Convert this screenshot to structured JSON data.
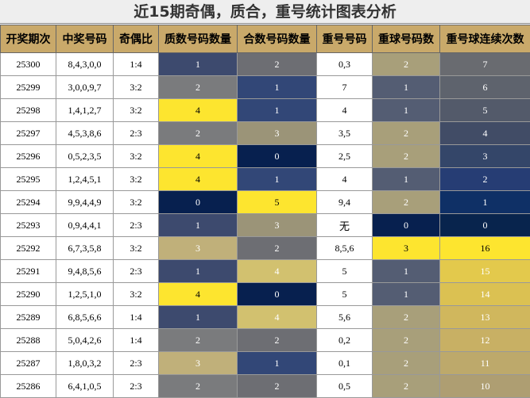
{
  "title": "近15期奇偶，质合，重号统计图表分析",
  "columns": [
    "开奖期次",
    "中奖号码",
    "奇偶比",
    "质数号码数量",
    "合数号码数量",
    "重号号码",
    "重球号码数",
    "重号球连续次数"
  ],
  "chart_data": {
    "type": "table",
    "title": "近15期奇偶，质合，重号统计图表分析",
    "columns": [
      "开奖期次",
      "中奖号码",
      "奇偶比",
      "质数号码数量",
      "合数号码数量",
      "重号号码",
      "重球号码数",
      "重号球连续次数"
    ],
    "rows": [
      {
        "period": "25300",
        "numbers": "8,4,3,0,0",
        "odd_even": "1:4",
        "prime": 1,
        "composite": 2,
        "repeat_nums": "0,3",
        "repeat_count": 2,
        "streak": 7
      },
      {
        "period": "25299",
        "numbers": "3,0,0,9,7",
        "odd_even": "3:2",
        "prime": 2,
        "composite": 1,
        "repeat_nums": "7",
        "repeat_count": 1,
        "streak": 6
      },
      {
        "period": "25298",
        "numbers": "1,4,1,2,7",
        "odd_even": "3:2",
        "prime": 4,
        "composite": 1,
        "repeat_nums": "4",
        "repeat_count": 1,
        "streak": 5
      },
      {
        "period": "25297",
        "numbers": "4,5,3,8,6",
        "odd_even": "2:3",
        "prime": 2,
        "composite": 3,
        "repeat_nums": "3,5",
        "repeat_count": 2,
        "streak": 4
      },
      {
        "period": "25296",
        "numbers": "0,5,2,3,5",
        "odd_even": "3:2",
        "prime": 4,
        "composite": 0,
        "repeat_nums": "2,5",
        "repeat_count": 2,
        "streak": 3
      },
      {
        "period": "25295",
        "numbers": "1,2,4,5,1",
        "odd_even": "3:2",
        "prime": 4,
        "composite": 1,
        "repeat_nums": "4",
        "repeat_count": 1,
        "streak": 2
      },
      {
        "period": "25294",
        "numbers": "9,9,4,4,9",
        "odd_even": "3:2",
        "prime": 0,
        "composite": 5,
        "repeat_nums": "9,4",
        "repeat_count": 2,
        "streak": 1
      },
      {
        "period": "25293",
        "numbers": "0,9,4,4,1",
        "odd_even": "2:3",
        "prime": 1,
        "composite": 3,
        "repeat_nums": "无",
        "repeat_count": 0,
        "streak": 0
      },
      {
        "period": "25292",
        "numbers": "6,7,3,5,8",
        "odd_even": "3:2",
        "prime": 3,
        "composite": 2,
        "repeat_nums": "8,5,6",
        "repeat_count": 3,
        "streak": 16
      },
      {
        "period": "25291",
        "numbers": "9,4,8,5,6",
        "odd_even": "2:3",
        "prime": 1,
        "composite": 4,
        "repeat_nums": "5",
        "repeat_count": 1,
        "streak": 15
      },
      {
        "period": "25290",
        "numbers": "1,2,5,1,0",
        "odd_even": "3:2",
        "prime": 4,
        "composite": 0,
        "repeat_nums": "5",
        "repeat_count": 1,
        "streak": 14
      },
      {
        "period": "25289",
        "numbers": "6,8,5,6,6",
        "odd_even": "1:4",
        "prime": 1,
        "composite": 4,
        "repeat_nums": "5,6",
        "repeat_count": 2,
        "streak": 13
      },
      {
        "period": "25288",
        "numbers": "5,0,4,2,6",
        "odd_even": "1:4",
        "prime": 2,
        "composite": 2,
        "repeat_nums": "0,2",
        "repeat_count": 2,
        "streak": 12
      },
      {
        "period": "25287",
        "numbers": "1,8,0,3,2",
        "odd_even": "2:3",
        "prime": 3,
        "composite": 1,
        "repeat_nums": "0,1",
        "repeat_count": 2,
        "streak": 11
      },
      {
        "period": "25286",
        "numbers": "6,4,1,0,5",
        "odd_even": "2:3",
        "prime": 2,
        "composite": 2,
        "repeat_nums": "0,5",
        "repeat_count": 2,
        "streak": 10
      }
    ],
    "heatmap": {
      "colors": {
        "navy": "#1b2b55",
        "slate": "#3d4a6e",
        "gray": "#6d6e73",
        "khaki": "#a89f78",
        "tan": "#c3b37b",
        "yellow": "#fde52f",
        "blue": "#28407f"
      },
      "prime_scale": {
        "0": "#07204f",
        "1": "#3d4a6e",
        "2": "#7a7b7d",
        "3": "#c0b07a",
        "4": "#fde52f"
      },
      "composite_scale": {
        "0": "#07204f",
        "1": "#324777",
        "2": "#6d6e73",
        "3": "#9b9478",
        "4": "#d2c16f",
        "5": "#fde52f"
      },
      "repeat_count_scale": {
        "0": "#07204f",
        "1": "#545d73",
        "2": "#a89f7a",
        "3": "#fde52f"
      },
      "streak_scale": {
        "0": "#08244d",
        "1": "#0f3066",
        "2": "#263d74",
        "3": "#344669",
        "4": "#414c66",
        "5": "#535a6a",
        "6": "#5e636d",
        "7": "#696b70",
        "10": "#ae9e72",
        "11": "#bda96b",
        "12": "#c8b064",
        "13": "#d0b75d",
        "14": "#dbc152",
        "15": "#e3c94c",
        "16": "#fde52f"
      }
    }
  }
}
